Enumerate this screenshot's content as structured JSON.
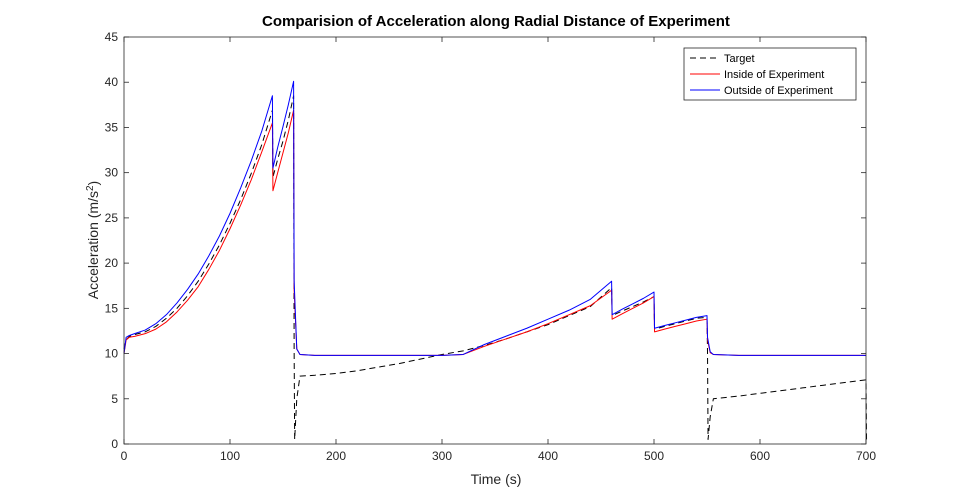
{
  "chart_data": {
    "type": "line",
    "title": "Comparision of Acceleration along Radial Distance of Experiment",
    "xlabel": "Time (s)",
    "ylabel_main": "Acceleration (m/s",
    "ylabel_sup": "2",
    "ylabel_close": ")",
    "xlim": [
      0,
      700
    ],
    "ylim": [
      0,
      45
    ],
    "xticks": [
      0,
      100,
      200,
      300,
      400,
      500,
      600,
      700
    ],
    "yticks": [
      0,
      5,
      10,
      15,
      20,
      25,
      30,
      35,
      40,
      45
    ],
    "grid": false,
    "legend_position": "top-right",
    "series": [
      {
        "name": "Target",
        "color": "#000000",
        "dash": "dashed",
        "x": [
          0,
          2,
          5,
          10,
          20,
          30,
          40,
          50,
          60,
          70,
          80,
          90,
          100,
          110,
          120,
          130,
          140,
          140.5,
          145,
          150,
          155,
          160,
          160.5,
          161,
          163,
          166,
          180,
          200,
          220,
          240,
          260,
          280,
          300,
          320,
          340,
          360,
          380,
          400,
          420,
          440,
          460,
          460.5,
          470,
          480,
          490,
          500,
          500.5,
          510,
          520,
          530,
          540,
          550,
          550.5,
          551,
          553,
          556,
          580,
          600,
          620,
          640,
          660,
          680,
          700,
          700.5
        ],
        "y": [
          10.5,
          11.5,
          11.9,
          12.1,
          12.4,
          13.0,
          13.9,
          15.0,
          16.4,
          18.0,
          19.9,
          22.0,
          24.4,
          27.0,
          29.9,
          33.1,
          36.9,
          29.5,
          31.5,
          33.5,
          35.8,
          38.5,
          10.5,
          0.5,
          5,
          7.5,
          7.6,
          7.8,
          8.1,
          8.5,
          8.9,
          9.4,
          9.9,
          10.3,
          10.9,
          11.6,
          12.4,
          13.2,
          14.2,
          15.2,
          17.3,
          14.2,
          14.7,
          15.2,
          15.7,
          16.3,
          12.7,
          13.0,
          13.3,
          13.6,
          13.9,
          14.0,
          10,
          0.5,
          3,
          5,
          5.3,
          5.6,
          5.9,
          6.2,
          6.5,
          6.8,
          7.1,
          0.5
        ]
      },
      {
        "name": "Inside of Experiment",
        "color": "#ff0000",
        "dash": "solid",
        "x": [
          0,
          2,
          5,
          10,
          20,
          30,
          40,
          50,
          60,
          70,
          80,
          90,
          100,
          110,
          120,
          130,
          140,
          140.5,
          145,
          150,
          155,
          160,
          160.5,
          163,
          166,
          180,
          200,
          220,
          240,
          260,
          280,
          300,
          320,
          340,
          360,
          380,
          400,
          420,
          440,
          460,
          460.5,
          470,
          480,
          490,
          500,
          500.5,
          510,
          520,
          530,
          540,
          550,
          550.5,
          553,
          556,
          580,
          600,
          620,
          640,
          660,
          680,
          700
        ],
        "y": [
          10,
          11.5,
          11.8,
          11.9,
          12.2,
          12.7,
          13.5,
          14.6,
          15.9,
          17.4,
          19.3,
          21.4,
          23.8,
          26.4,
          29.2,
          32.3,
          35.5,
          28.0,
          30.0,
          32.2,
          34.4,
          36.9,
          17,
          10.5,
          9.9,
          9.8,
          9.8,
          9.8,
          9.8,
          9.8,
          9.8,
          9.8,
          9.9,
          10.8,
          11.6,
          12.4,
          13.3,
          14.3,
          15.3,
          17.0,
          13.8,
          14.4,
          15.0,
          15.6,
          16.3,
          12.4,
          12.7,
          13.0,
          13.3,
          13.6,
          13.8,
          11.5,
          10.1,
          9.9,
          9.8,
          9.8,
          9.8,
          9.8,
          9.8,
          9.8,
          9.8
        ]
      },
      {
        "name": "Outside of Experiment",
        "color": "#0000ff",
        "dash": "solid",
        "x": [
          0,
          2,
          5,
          10,
          20,
          30,
          40,
          50,
          60,
          70,
          80,
          90,
          100,
          110,
          120,
          130,
          140,
          140.5,
          145,
          150,
          155,
          160,
          160.5,
          163,
          166,
          180,
          200,
          220,
          240,
          260,
          280,
          300,
          320,
          340,
          360,
          380,
          400,
          420,
          440,
          460,
          460.5,
          470,
          480,
          490,
          500,
          500.5,
          510,
          520,
          530,
          540,
          550,
          550.5,
          553,
          556,
          580,
          600,
          620,
          640,
          660,
          680,
          700
        ],
        "y": [
          10,
          11.8,
          12.0,
          12.2,
          12.6,
          13.3,
          14.3,
          15.6,
          17.1,
          18.8,
          20.8,
          23.0,
          25.5,
          28.3,
          31.3,
          34.6,
          38.5,
          30.5,
          32.8,
          35.1,
          37.5,
          40.1,
          18,
          10.5,
          9.9,
          9.8,
          9.8,
          9.8,
          9.8,
          9.8,
          9.8,
          9.8,
          9.9,
          11.0,
          11.9,
          12.8,
          13.8,
          14.8,
          16.0,
          18.0,
          14.3,
          14.9,
          15.5,
          16.1,
          16.8,
          12.8,
          13.1,
          13.4,
          13.7,
          14.0,
          14.2,
          11.8,
          10.2,
          9.9,
          9.8,
          9.8,
          9.8,
          9.8,
          9.8,
          9.8,
          9.8
        ]
      }
    ]
  }
}
